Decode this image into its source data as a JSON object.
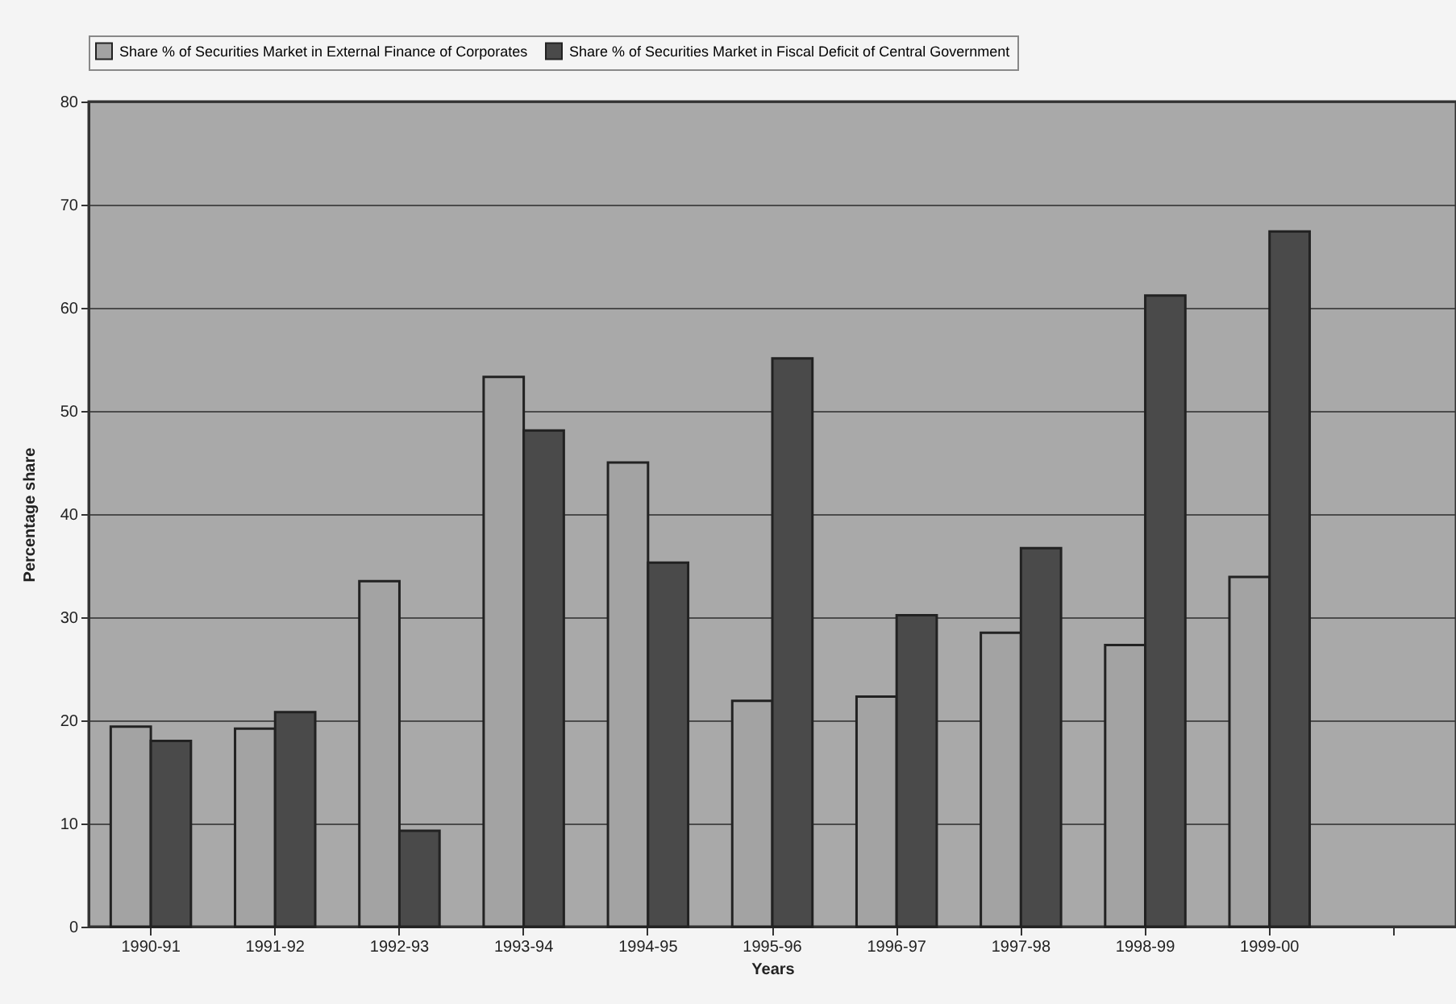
{
  "chart_data": {
    "type": "bar",
    "xlabel": "Years",
    "ylabel": "Percentage share",
    "categories": [
      "1990-91",
      "1991-92",
      "1992-93",
      "1993-94",
      "1994-95",
      "1995-96",
      "1996-97",
      "1997-98",
      "1998-99",
      "1999-00",
      null
    ],
    "series": [
      {
        "name": "Share % of Securities Market in External Finance of Corporates",
        "color": "#a3a3a3",
        "values": [
          19.4,
          19.2,
          33.5,
          53.3,
          45.0,
          21.9,
          22.3,
          28.5,
          27.3,
          33.9,
          null
        ]
      },
      {
        "name": "Share % of Securities Market in Fiscal Deficit of Central Government",
        "color": "#4a4a4a",
        "values": [
          18.0,
          20.8,
          9.3,
          48.1,
          35.3,
          55.1,
          30.2,
          36.7,
          61.2,
          67.4,
          null
        ]
      }
    ],
    "ylim": [
      0,
      80
    ],
    "yticks": [
      0,
      10,
      20,
      30,
      40,
      50,
      60,
      70,
      80
    ],
    "grid": "y",
    "legend": "top"
  }
}
